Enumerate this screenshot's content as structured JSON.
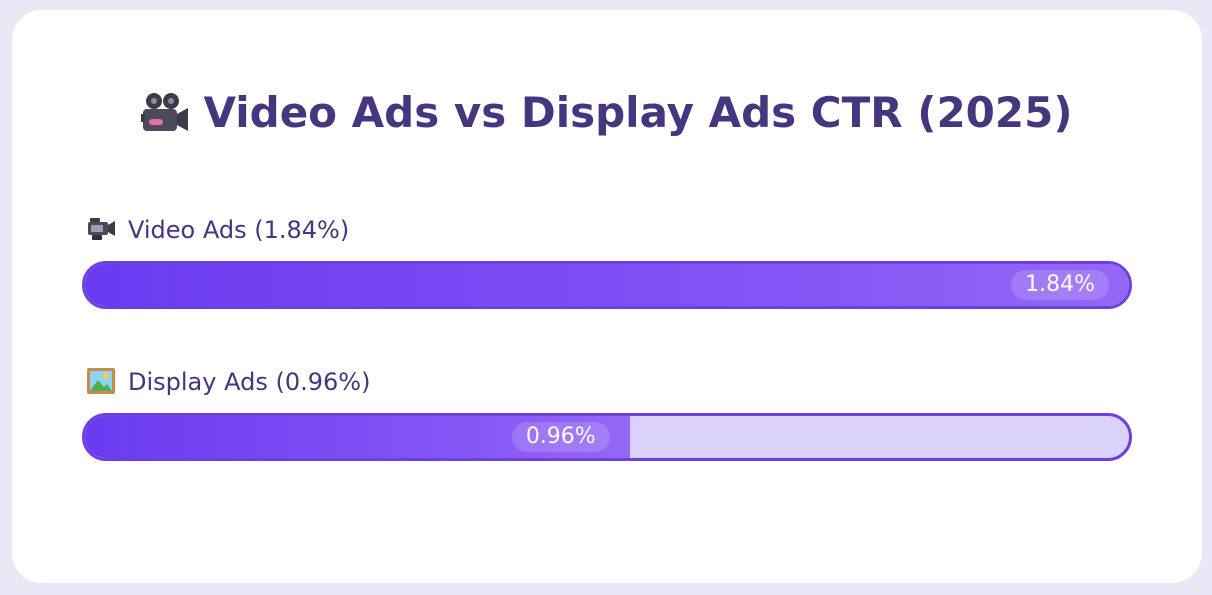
{
  "chart_data": {
    "type": "bar",
    "orientation": "horizontal",
    "title": "Video Ads vs Display Ads CTR (2025)",
    "title_icon": "movie-camera-icon",
    "categories": [
      "Video Ads",
      "Display Ads"
    ],
    "values": [
      1.84,
      0.96
    ],
    "unit": "%",
    "xlim": [
      0,
      1.84
    ],
    "bars": [
      {
        "label": "Video Ads (1.84%)",
        "value": 1.84,
        "value_label": "1.84%",
        "icon": "video-camera-icon"
      },
      {
        "label": "Display Ads (0.96%)",
        "value": 0.96,
        "value_label": "0.96%",
        "icon": "framed-picture-icon"
      }
    ]
  },
  "colors": {
    "title": "#46357f",
    "bar_fill": "#7c4cf3",
    "bar_track": "#dbd2fc",
    "bar_border": "#6f3fe0",
    "background": "#ebe7f7"
  }
}
